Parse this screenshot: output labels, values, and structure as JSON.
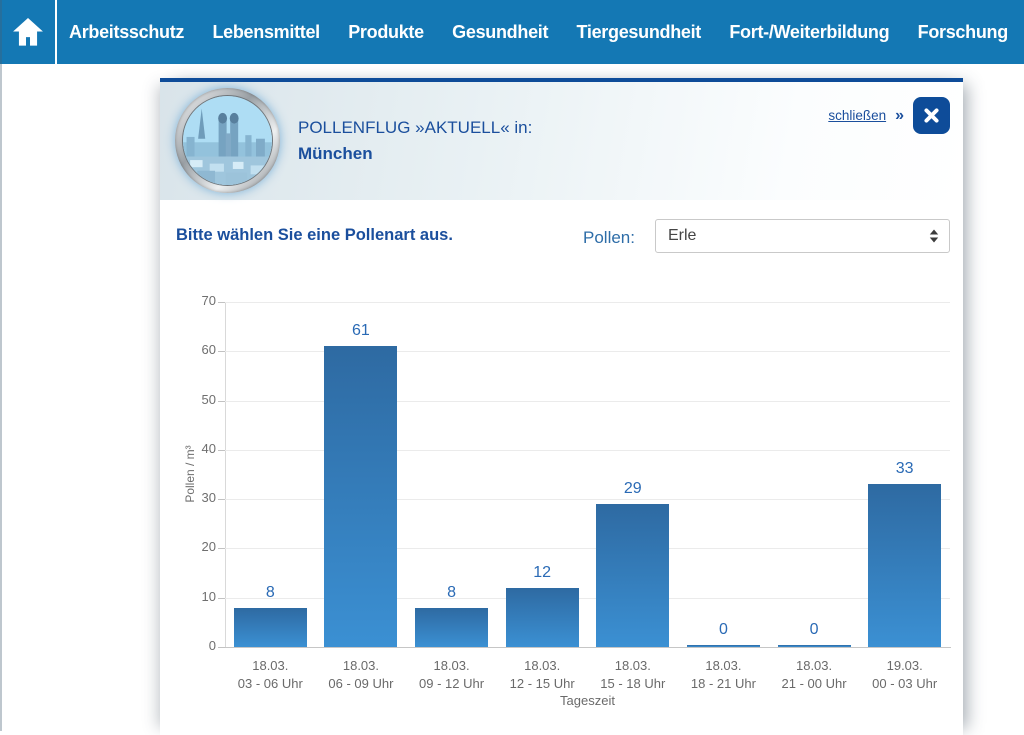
{
  "colors": {
    "nav_bg": "#1478b4",
    "navy": "#0e4c99",
    "link_blue": "#1b4f9d",
    "accent_blue": "#2e6da8",
    "bar_top": "#2e6aa2",
    "bar_bottom": "#3b90d3",
    "value_label": "#2a6ab5"
  },
  "nav": {
    "items": [
      "Arbeitsschutz",
      "Lebensmittel",
      "Produkte",
      "Gesundheit",
      "Tiergesundheit",
      "Fort-/Weiterbildung",
      "Forschung"
    ]
  },
  "panel": {
    "title": "POLLENFLUG »AKTUELL« in:",
    "city": "München",
    "close_link": "schließen",
    "close_chevrons": "»",
    "prompt": "Bitte wählen Sie eine Pollenart aus.",
    "pollen_label": "Pollen:",
    "pollen_selected": "Erle"
  },
  "icons": {
    "home": "home-icon",
    "close": "close-icon",
    "select_arrows": "updown-arrows-icon",
    "badge": "munich-skyline-badge"
  },
  "chart_data": {
    "type": "bar",
    "title": "",
    "categories": [
      {
        "date": "18.03.",
        "time": "03 - 06 Uhr"
      },
      {
        "date": "18.03.",
        "time": "06 - 09 Uhr"
      },
      {
        "date": "18.03.",
        "time": "09 - 12 Uhr"
      },
      {
        "date": "18.03.",
        "time": "12 - 15 Uhr"
      },
      {
        "date": "18.03.",
        "time": "15 - 18 Uhr"
      },
      {
        "date": "18.03.",
        "time": "18 - 21 Uhr"
      },
      {
        "date": "18.03.",
        "time": "21 - 00 Uhr"
      },
      {
        "date": "19.03.",
        "time": "00 - 03 Uhr"
      }
    ],
    "values": [
      8,
      61,
      8,
      12,
      29,
      0,
      0,
      33
    ],
    "xlabel": "Tageszeit",
    "ylabel": "Pollen / m³",
    "ylim": [
      0,
      70
    ],
    "yticks": [
      0,
      10,
      20,
      30,
      40,
      50,
      60,
      70
    ],
    "grid": true,
    "legend": "none"
  }
}
